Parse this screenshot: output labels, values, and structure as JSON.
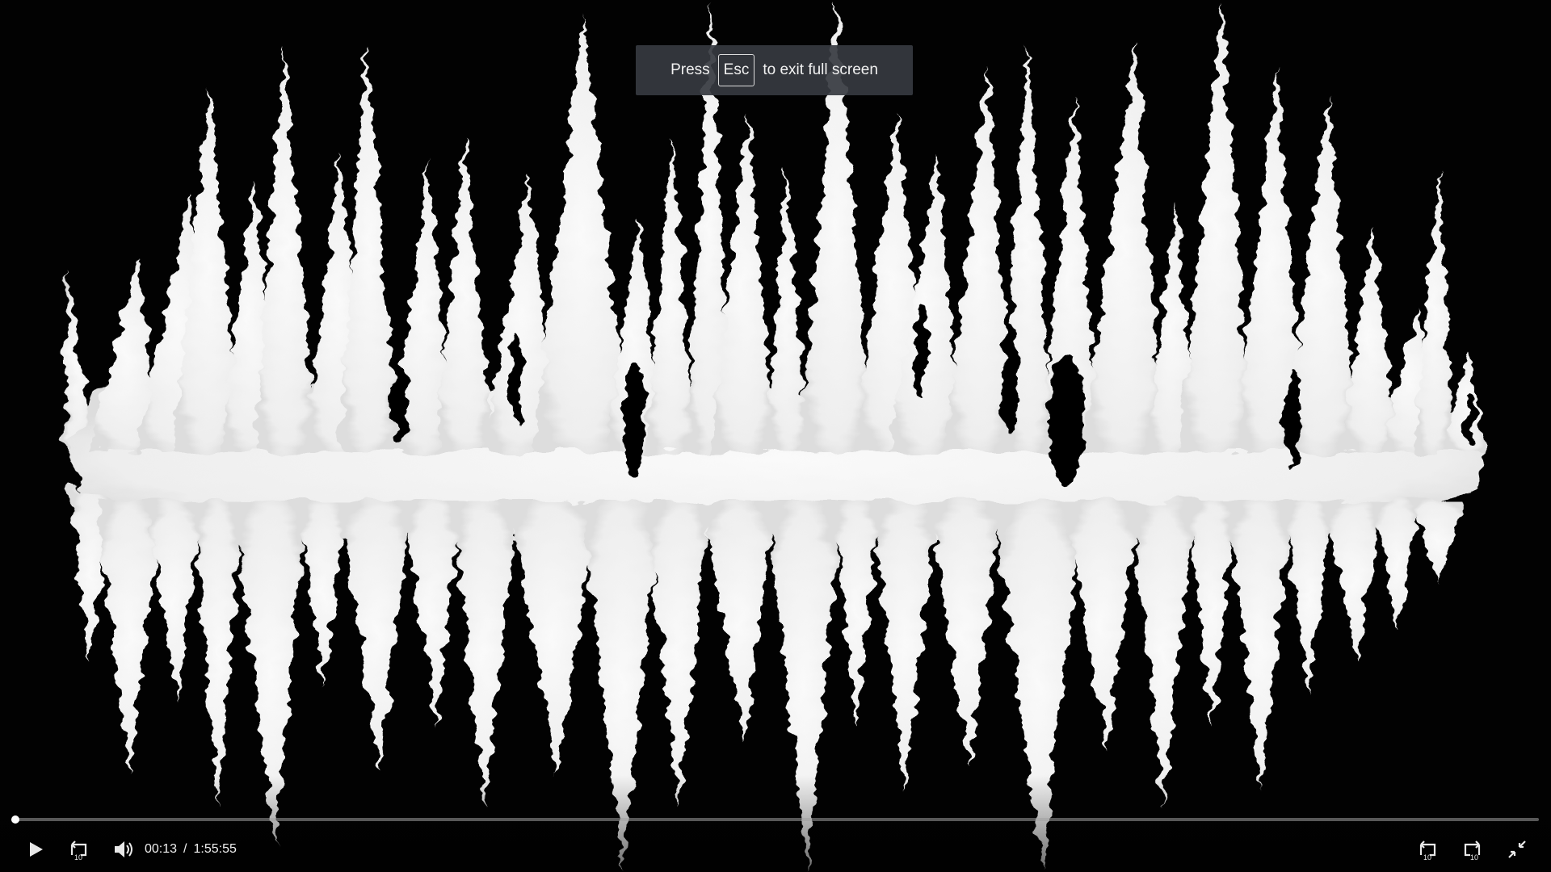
{
  "fullscreen_toast": {
    "prefix": "Press",
    "key": "Esc",
    "suffix": "to exit full screen"
  },
  "player": {
    "current_time": "00:13",
    "separator": "/",
    "duration": "1:55:55",
    "progress_fraction": 0.0019
  },
  "controls": {
    "play_icon": "play-icon",
    "rewind_icon": "rewind-10-icon",
    "volume_icon": "volume-icon",
    "skip_back_icon": "rewind-10-icon",
    "skip_forward_icon": "forward-10-icon",
    "exit_fullscreen_icon": "exit-fullscreen-icon",
    "skip_seconds": "10"
  },
  "colors": {
    "waveform": "#f4f4f4",
    "background": "#020202",
    "toast_bg": "#363a40"
  }
}
